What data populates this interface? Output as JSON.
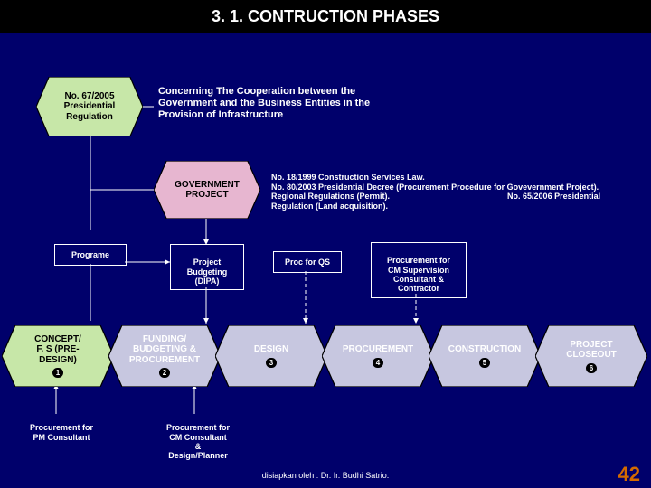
{
  "title": "3. 1. CONTRUCTION PHASES",
  "colors": {
    "page_bg": "#00006b",
    "title_bg": "#000000",
    "title_text": "#ffffff",
    "hex_lightgreen": "#c7e7a8",
    "hex_process": "#c7c7e0",
    "hex_gov": "#e7b6d0",
    "hex_stroke": "#000000",
    "text_white": "#ffffff",
    "text_black": "#000000",
    "arrow": "#ffffff",
    "arrow_dashed": "#ffffff",
    "page_number": "#d46a00"
  },
  "regulation_box": {
    "line1": "No. 67/2005",
    "line2": "Presidential",
    "line3": "Regulation"
  },
  "regulation_desc": "Concerning The Cooperation between the Government and the Business Entities in the Provision of Infrastructure",
  "gov_box": "GOVERNMENT PROJECT",
  "gov_laws": "No. 18/1999 Construction Services Law.\nNo. 80/2003 Presidential Decree (Procurement Procedure for Govevernment Project).\nRegional Regulations (Permit).                                                    No. 65/2006 Presidential Regulation (Land acquisition).",
  "mid_labels": {
    "programe": "Programe",
    "proj_budget": "Project\nBudgeting\n(DIPA)",
    "proc_qs": "Proc for QS",
    "proc_cm": "Procurement for\nCM Supervision\nConsultant &\nContractor"
  },
  "phases": [
    {
      "num": "1",
      "label": "CONCEPT/\nF. S (PRE-\nDESIGN)",
      "fill": "#c7e7a8",
      "font_color": "#000000"
    },
    {
      "num": "2",
      "label": "FUNDING/\nBUDGETING &\nPROCUREMENT",
      "fill": "#c7c7e0",
      "font_color": "#ffffff"
    },
    {
      "num": "3",
      "label": "DESIGN",
      "fill": "#c7c7e0",
      "font_color": "#ffffff"
    },
    {
      "num": "4",
      "label": "PROCUREMENT",
      "fill": "#c7c7e0",
      "font_color": "#ffffff"
    },
    {
      "num": "5",
      "label": "CONSTRUCTION",
      "fill": "#c7c7e0",
      "font_color": "#ffffff"
    },
    {
      "num": "6",
      "label": "PROJECT\nCLOSEOUT",
      "fill": "#c7c7e0",
      "font_color": "#ffffff"
    }
  ],
  "bottom_boxes": {
    "pm": "Procurement for\nPM Consultant",
    "cm": "Procurement for\nCM Consultant\n&\nDesign/Planner"
  },
  "footer": {
    "caption": "disiapkan oleh : Dr. Ir. Budhi Satrio.",
    "page": "42"
  }
}
